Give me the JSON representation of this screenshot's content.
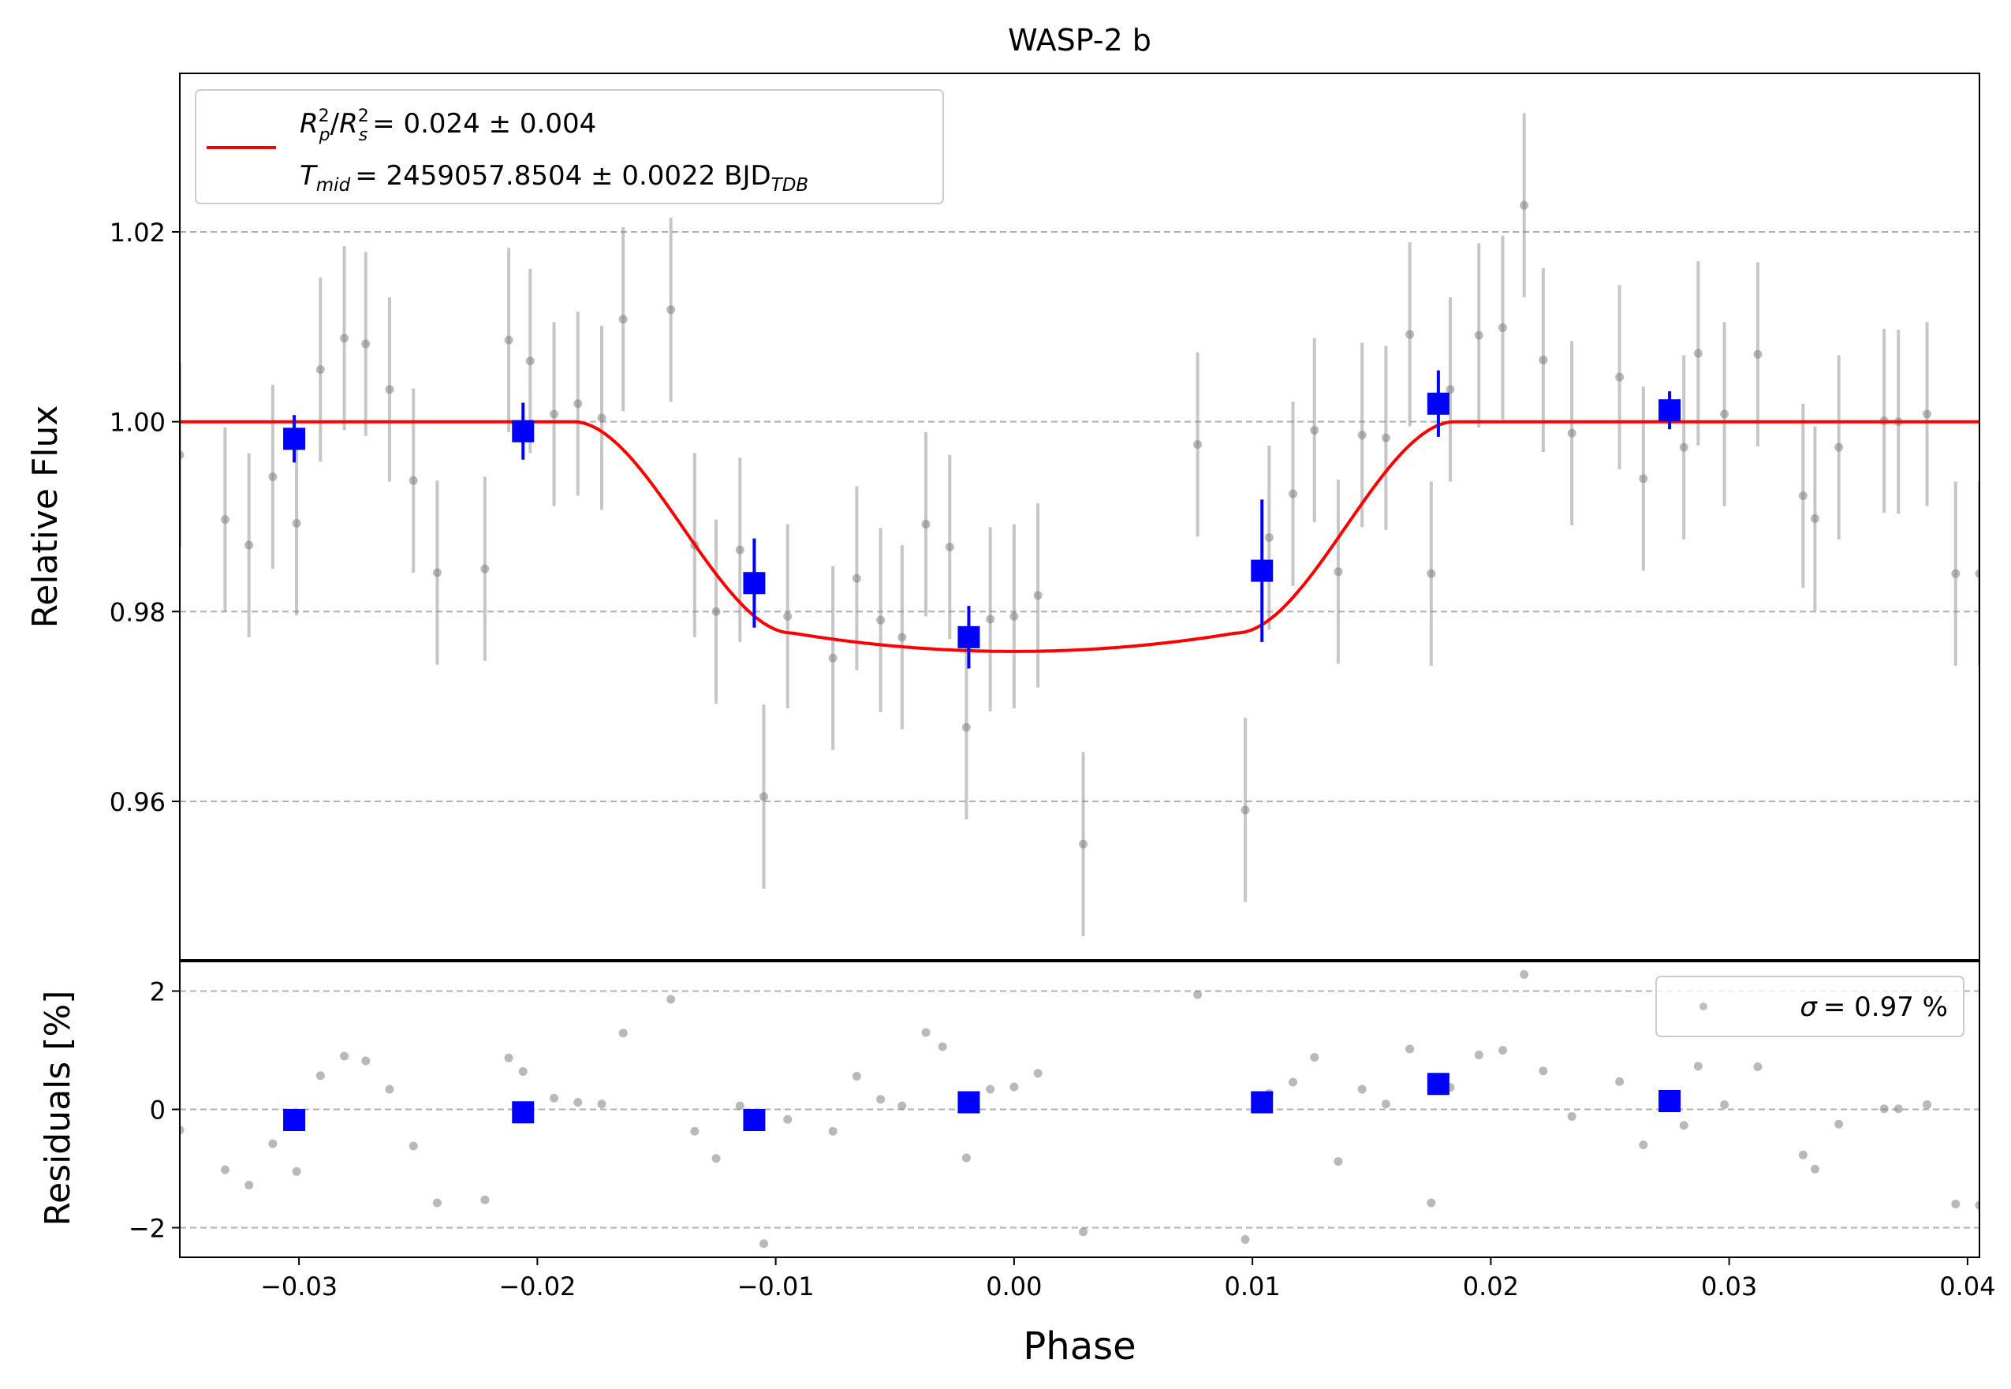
{
  "chart_data": [
    {
      "panel": "main",
      "type": "scatter",
      "title": "WASP-2 b",
      "ylabel": "Relative Flux",
      "xlim": [
        -0.035,
        0.0405
      ],
      "ylim": [
        0.9433,
        1.0367
      ],
      "y_ticks": [
        0.96,
        0.98,
        1.0,
        1.02
      ],
      "y_tick_labels": [
        "0.96",
        "0.98",
        "1.00",
        "1.02"
      ],
      "grid": "horizontal dashed",
      "legend_placement": "top-left",
      "legend": {
        "rp_label": "= 0.024 ± 0.004",
        "tmid_label": "= 2459057.8504 ± 0.0022 BJD",
        "tmid_subscript": "TDB",
        "rp_symbol_parts": [
          "R",
          "p",
          "2",
          "R",
          "s",
          "2"
        ],
        "tmid_symbol_parts": [
          "T",
          "mid"
        ]
      },
      "series": [
        {
          "kind": "unbinned data",
          "color": "#808080",
          "x": [
            -0.035,
            -0.0331,
            -0.0321,
            -0.0311,
            -0.0301,
            -0.0291,
            -0.0281,
            -0.0272,
            -0.0262,
            -0.0252,
            -0.0242,
            -0.0222,
            -0.0212,
            -0.0203,
            -0.0193,
            -0.0183,
            -0.0173,
            -0.0164,
            -0.0144,
            -0.0134,
            -0.0125,
            -0.0115,
            -0.0105,
            -0.0095,
            -0.0076,
            -0.0066,
            -0.0056,
            -0.0047,
            -0.0037,
            -0.0027,
            -0.002,
            -0.001,
            0.0,
            0.001,
            0.0029,
            0.0077,
            0.0097,
            0.0107,
            0.0117,
            0.0126,
            0.0136,
            0.0146,
            0.0156,
            0.0166,
            0.0175,
            0.0183,
            0.0195,
            0.0205,
            0.0214,
            0.0222,
            0.0234,
            0.0254,
            0.0264,
            0.0281,
            0.0287,
            0.0298,
            0.0312,
            0.0331,
            0.0336,
            0.0346,
            0.0365,
            0.0371,
            0.0383,
            0.0395,
            0.0405
          ],
          "y": [
            0.9965,
            0.9897,
            0.987,
            0.9942,
            0.9893,
            1.0055,
            1.0088,
            1.0082,
            1.0034,
            0.9938,
            0.9841,
            0.9845,
            1.0086,
            1.0064,
            1.0008,
            1.0019,
            1.0004,
            1.0108,
            1.0118,
            0.987,
            0.98,
            0.9865,
            0.9605,
            0.9795,
            0.9751,
            0.9835,
            0.9791,
            0.9773,
            0.9892,
            0.9868,
            0.9678,
            0.9792,
            0.9795,
            0.9817,
            0.9555,
            0.9976,
            0.9591,
            0.9878,
            0.9924,
            0.9991,
            0.9842,
            0.9986,
            0.9983,
            1.0092,
            0.984,
            1.0034,
            1.0091,
            1.0099,
            1.0228,
            1.0065,
            0.9988,
            1.0047,
            0.994,
            0.9973,
            1.0072,
            1.0008,
            1.0071,
            0.9922,
            0.9898,
            0.9973,
            1.0001,
            1.0,
            1.0008,
            0.984,
            0.984
          ],
          "yerr": 0.0097
        },
        {
          "kind": "binned data",
          "color": "#0000ff",
          "x": [
            -0.0302,
            -0.0206,
            -0.0109,
            -0.0019,
            0.0104,
            0.0178,
            0.0275
          ],
          "y": [
            0.9982,
            0.999,
            0.983,
            0.9773,
            0.9843,
            1.0019,
            1.0012
          ],
          "yerr": [
            0.0025,
            0.003,
            0.0047,
            0.0033,
            0.0075,
            0.0035,
            0.002
          ]
        },
        {
          "kind": "transit model",
          "color": "#ff0000",
          "model": "transit",
          "depth": 0.0242,
          "t14_half": 0.0185,
          "ingress_duration": 0.0092
        }
      ]
    },
    {
      "panel": "residuals",
      "type": "scatter",
      "xlabel": "Phase",
      "ylabel": "Residuals [%]",
      "xlim": [
        -0.035,
        0.0405
      ],
      "ylim": [
        -2.5,
        2.5
      ],
      "y_ticks": [
        -2,
        0,
        2
      ],
      "y_tick_labels": [
        "−2",
        "0",
        "2"
      ],
      "x_ticks": [
        -0.03,
        -0.02,
        -0.01,
        0.0,
        0.01,
        0.02,
        0.03,
        0.04
      ],
      "x_tick_labels": [
        "−0.03",
        "−0.02",
        "−0.01",
        "0.00",
        "0.01",
        "0.02",
        "0.03",
        "0.04"
      ],
      "grid": "horizontal dashed",
      "legend_placement": "top-right",
      "legend": {
        "label": "= 0.97 %",
        "symbol": "σ"
      },
      "series": [
        {
          "kind": "unbinned residuals",
          "color": "#808080",
          "x": [
            -0.035,
            -0.0331,
            -0.0321,
            -0.0311,
            -0.0301,
            -0.0291,
            -0.0281,
            -0.0272,
            -0.0262,
            -0.0252,
            -0.0242,
            -0.0222,
            -0.0212,
            -0.0206,
            -0.0193,
            -0.0183,
            -0.0173,
            -0.0164,
            -0.0144,
            -0.0134,
            -0.0125,
            -0.0115,
            -0.0105,
            -0.0095,
            -0.0076,
            -0.0066,
            -0.0056,
            -0.0047,
            -0.0037,
            -0.003,
            -0.002,
            -0.001,
            0.0,
            0.001,
            0.0029,
            0.0077,
            0.0097,
            0.0107,
            0.0117,
            0.0126,
            0.0136,
            0.0146,
            0.0156,
            0.0166,
            0.0175,
            0.0183,
            0.0195,
            0.0205,
            0.0214,
            0.0222,
            0.0234,
            0.0254,
            0.0264,
            0.0281,
            0.0287,
            0.0298,
            0.0312,
            0.0331,
            0.0336,
            0.0346,
            0.0365,
            0.0371,
            0.0383,
            0.0395,
            0.0405
          ],
          "y": [
            -0.35,
            -1.02,
            -1.28,
            -0.58,
            -1.05,
            0.57,
            0.9,
            0.82,
            0.34,
            -0.62,
            -1.58,
            -1.53,
            0.87,
            0.64,
            0.19,
            0.12,
            0.09,
            1.29,
            1.86,
            -0.37,
            -0.83,
            0.06,
            -2.27,
            -0.17,
            -0.37,
            0.56,
            0.17,
            0.06,
            1.3,
            1.06,
            -0.82,
            0.34,
            0.38,
            0.61,
            -2.07,
            1.94,
            -2.2,
            0.27,
            0.46,
            0.88,
            -0.88,
            0.34,
            0.09,
            1.02,
            -1.58,
            0.37,
            0.92,
            1.0,
            2.28,
            0.65,
            -0.12,
            0.47,
            -0.6,
            -0.27,
            0.73,
            0.08,
            0.72,
            -0.77,
            -1.01,
            -0.25,
            0.01,
            0.01,
            0.08,
            -1.6,
            -1.62
          ]
        },
        {
          "kind": "binned residuals",
          "color": "#0000ff",
          "x": [
            -0.0302,
            -0.0206,
            -0.0109,
            -0.0019,
            0.0104,
            0.0178,
            0.0275
          ],
          "y": [
            -0.18,
            -0.05,
            -0.18,
            0.12,
            0.12,
            0.43,
            0.14
          ]
        }
      ]
    }
  ]
}
